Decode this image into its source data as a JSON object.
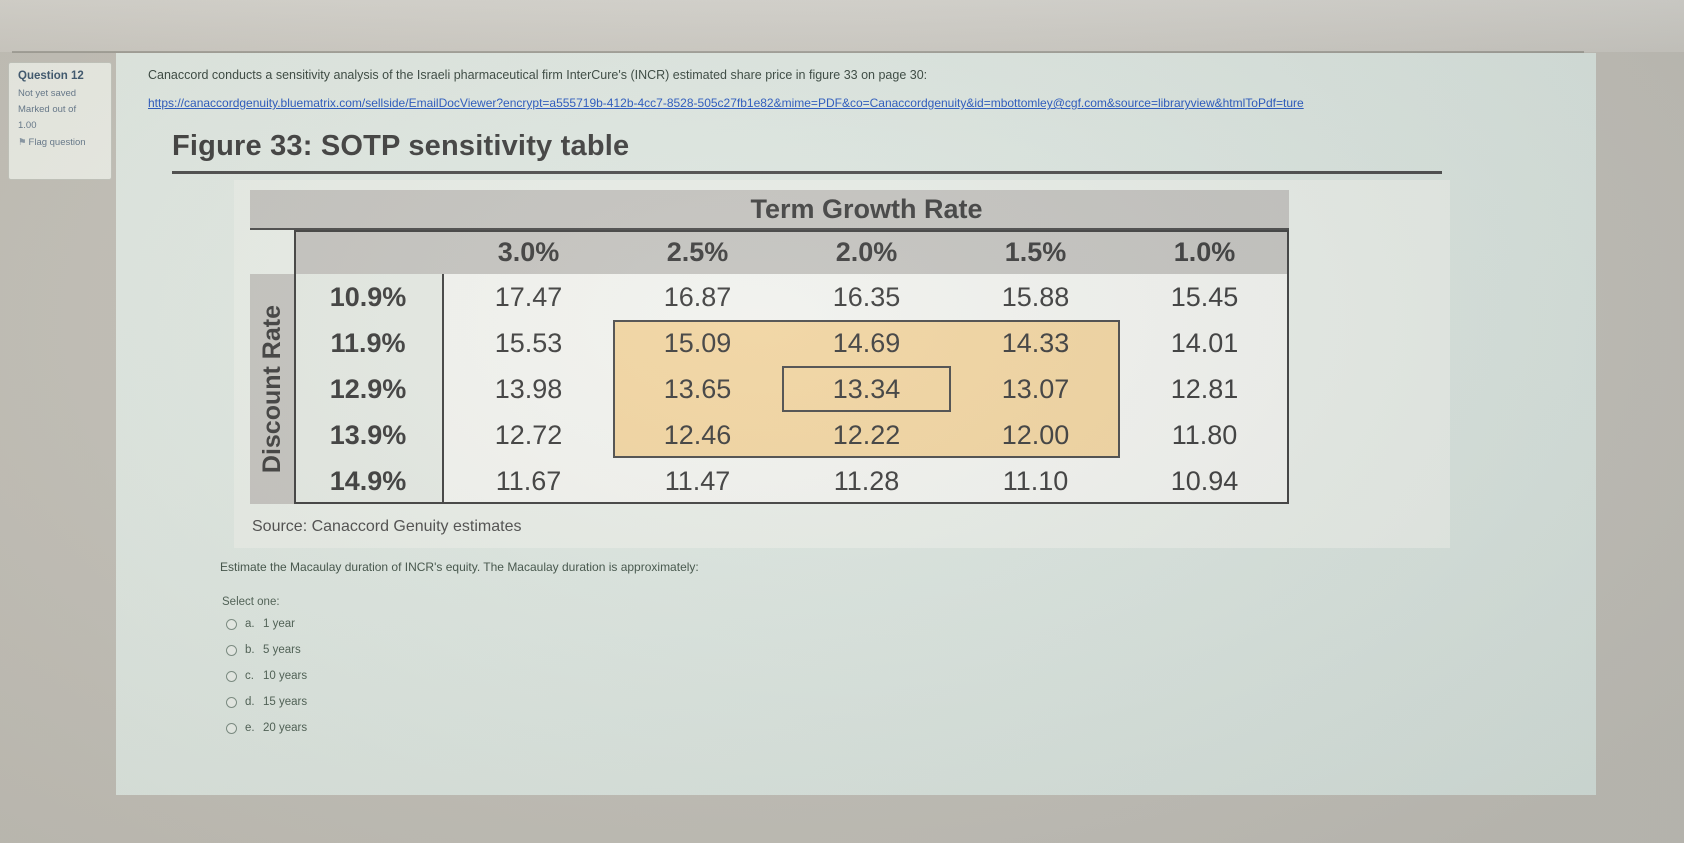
{
  "sidebar": {
    "title": "Question 12",
    "status": "Not yet saved",
    "marked_out_of": "Marked out of",
    "mark_value": "1.00",
    "flag_label": "Flag question"
  },
  "main": {
    "prompt": "Canaccord conducts a sensitivity analysis of the Israeli pharmaceutical firm InterCure's (INCR) estimated share price in figure 33 on page 30:",
    "link": "https://canaccordgenuity.bluematrix.com/sellside/EmailDocViewer?encrypt=a555719b-412b-4cc7-8528-505c27fb1e82&mime=PDF&co=Canaccordgenuity&id=mbottomley@cgf.com&source=libraryview&htmlToPdf=ture",
    "figure_title": "Figure 33: SOTP sensitivity table",
    "source": "Source: Canaccord Genuity estimates",
    "question": "Estimate the Macaulay duration of INCR's equity. The Macaulay duration is approximately:",
    "select_label": "Select one:",
    "options": [
      {
        "letter": "a.",
        "label": "1 year"
      },
      {
        "letter": "b.",
        "label": "5 years"
      },
      {
        "letter": "c.",
        "label": "10 years"
      },
      {
        "letter": "d.",
        "label": "15 years"
      },
      {
        "letter": "e.",
        "label": "20 years"
      }
    ]
  },
  "chart_data": {
    "type": "table",
    "title": "Figure 33: SOTP sensitivity table",
    "column_group_label": "Term Growth Rate",
    "row_group_label": "Discount Rate",
    "columns": [
      "3.0%",
      "2.5%",
      "2.0%",
      "1.5%",
      "1.0%"
    ],
    "rows": [
      "10.9%",
      "11.9%",
      "12.9%",
      "13.9%",
      "14.9%"
    ],
    "values": [
      [
        "17.47",
        "16.87",
        "16.35",
        "15.88",
        "15.45"
      ],
      [
        "15.53",
        "15.09",
        "14.69",
        "14.33",
        "14.01"
      ],
      [
        "13.98",
        "13.65",
        "13.34",
        "13.07",
        "12.81"
      ],
      [
        "12.72",
        "12.46",
        "12.22",
        "12.00",
        "11.80"
      ],
      [
        "11.67",
        "11.47",
        "11.28",
        "11.10",
        "10.94"
      ]
    ],
    "highlight_region": {
      "row_start": 1,
      "row_end": 3,
      "col_start": 1,
      "col_end": 3
    },
    "emphasized_cell": {
      "row": 2,
      "col": 2,
      "value": "13.34"
    },
    "highlight_color": "#f7d9a3",
    "source": "Source: Canaccord Genuity estimates"
  }
}
